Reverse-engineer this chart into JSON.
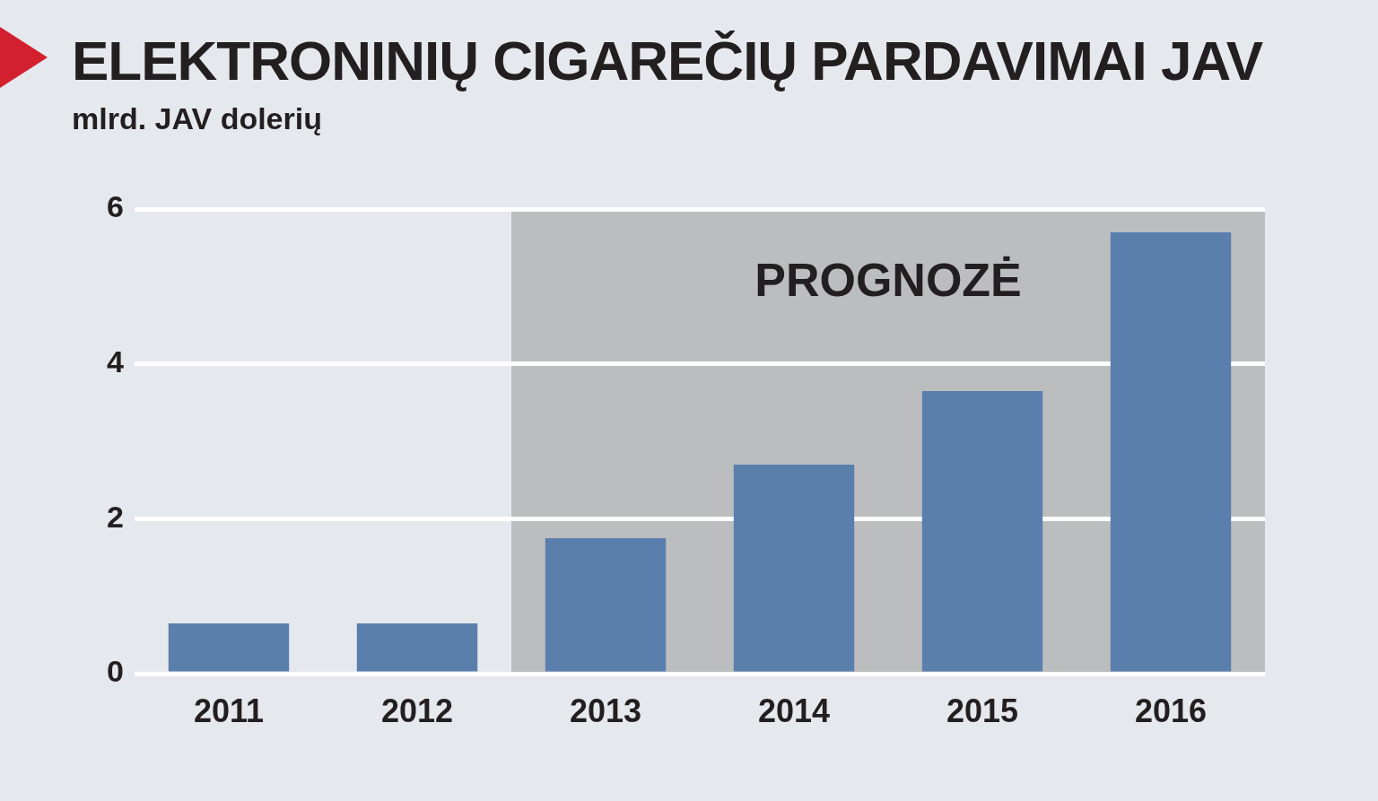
{
  "chart_data": {
    "type": "bar",
    "title": "ELEKTRONINIŲ CIGAREČIŲ PARDAVIMAI JAV",
    "subtitle": "mlrd. JAV dolerių",
    "categories": [
      "2011",
      "2012",
      "2013",
      "2014",
      "2015",
      "2016"
    ],
    "values": [
      0.65,
      0.65,
      1.75,
      2.7,
      3.65,
      5.7
    ],
    "color": "#5a7fad",
    "ylim": [
      0,
      6
    ],
    "yticks": [
      0,
      2,
      4,
      6
    ],
    "grid": "y",
    "bands": [
      {
        "axis": "x",
        "from": "2013",
        "to": "2016",
        "label": "PROGNOZĖ",
        "color": "#bcbdbf"
      }
    ]
  }
}
